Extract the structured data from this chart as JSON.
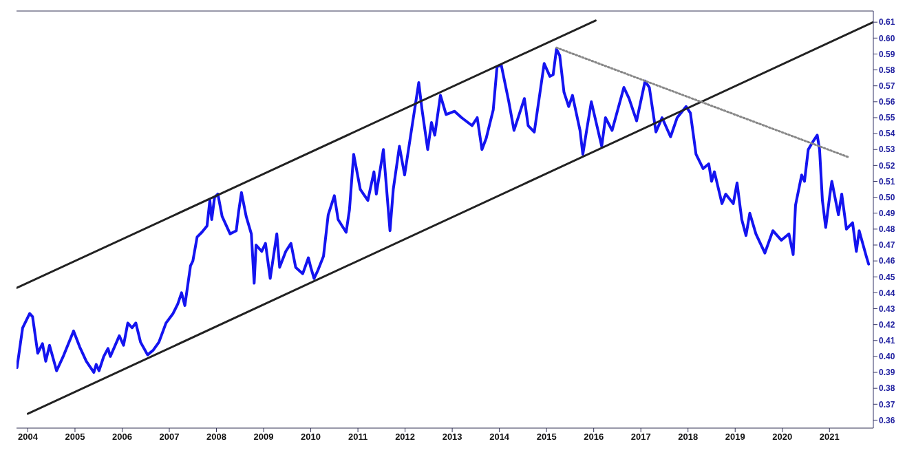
{
  "chart_data": {
    "type": "line",
    "xlim": [
      2003.76,
      2021.93
    ],
    "ylim": [
      0.355,
      0.617
    ],
    "xticks": [
      2004,
      2005,
      2006,
      2007,
      2008,
      2009,
      2010,
      2011,
      2012,
      2013,
      2014,
      2015,
      2016,
      2017,
      2018,
      2019,
      2020,
      2021
    ],
    "yticks": [
      0.36,
      0.37,
      0.38,
      0.39,
      {
        "value": 0.4,
        "label": "0.40"
      },
      0.41,
      0.42,
      0.43,
      0.44,
      0.45,
      0.46,
      0.47,
      0.48,
      0.49,
      {
        "value": 0.5,
        "label": "0.50"
      },
      0.51,
      0.52,
      0.53,
      0.54,
      0.55,
      0.56,
      0.57,
      0.58,
      0.59,
      {
        "value": 0.6,
        "label": "0.60"
      },
      0.61
    ],
    "grid": false,
    "legend": false,
    "series": [
      {
        "color": "#1414f0",
        "line_style": "solid",
        "x": [
          2003.77,
          2003.89,
          2004.04,
          2004.1,
          2004.21,
          2004.31,
          2004.38,
          2004.46,
          2004.61,
          2004.75,
          2004.97,
          2005.1,
          2005.24,
          2005.4,
          2005.45,
          2005.51,
          2005.61,
          2005.7,
          2005.75,
          2005.94,
          2006.03,
          2006.12,
          2006.21,
          2006.29,
          2006.39,
          2006.54,
          2006.66,
          2006.78,
          2006.93,
          2007.08,
          2007.18,
          2007.26,
          2007.33,
          2007.45,
          2007.5,
          2007.59,
          2007.69,
          2007.8,
          2007.86,
          2007.9,
          2007.96,
          2008.03,
          2008.12,
          2008.29,
          2008.42,
          2008.47,
          2008.53,
          2008.63,
          2008.74,
          2008.8,
          2008.84,
          2008.96,
          2009.04,
          2009.14,
          2009.28,
          2009.34,
          2009.47,
          2009.58,
          2009.68,
          2009.83,
          2009.95,
          2010.0,
          2010.07,
          2010.15,
          2010.27,
          2010.37,
          2010.5,
          2010.58,
          2010.75,
          2010.82,
          2010.91,
          2011.05,
          2011.21,
          2011.34,
          2011.39,
          2011.54,
          2011.68,
          2011.75,
          2011.88,
          2011.99,
          2012.15,
          2012.29,
          2012.36,
          2012.48,
          2012.56,
          2012.63,
          2012.75,
          2012.87,
          2013.05,
          2013.2,
          2013.42,
          2013.53,
          2013.63,
          2013.72,
          2013.87,
          2013.95,
          2014.04,
          2014.2,
          2014.31,
          2014.53,
          2014.61,
          2014.74,
          2014.95,
          2015.07,
          2015.14,
          2015.21,
          2015.28,
          2015.37,
          2015.47,
          2015.55,
          2015.71,
          2015.77,
          2015.85,
          2015.95,
          2016.17,
          2016.25,
          2016.39,
          2016.64,
          2016.75,
          2016.91,
          2017.09,
          2017.18,
          2017.32,
          2017.45,
          2017.63,
          2017.77,
          2017.96,
          2018.05,
          2018.17,
          2018.32,
          2018.44,
          2018.5,
          2018.56,
          2018.72,
          2018.8,
          2018.96,
          2019.04,
          2019.14,
          2019.23,
          2019.31,
          2019.44,
          2019.63,
          2019.8,
          2019.98,
          2020.14,
          2020.23,
          2020.28,
          2020.41,
          2020.47,
          2020.55,
          2020.65,
          2020.74,
          2020.79,
          2020.85,
          2020.92,
          2021.01,
          2021.05,
          2021.19,
          2021.26,
          2021.36,
          2021.49,
          2021.57,
          2021.63,
          2021.78,
          2021.83
        ],
        "values": [
          0.393,
          0.418,
          0.427,
          0.425,
          0.402,
          0.408,
          0.397,
          0.407,
          0.391,
          0.4,
          0.416,
          0.406,
          0.397,
          0.39,
          0.395,
          0.391,
          0.4,
          0.405,
          0.4,
          0.413,
          0.407,
          0.421,
          0.418,
          0.421,
          0.409,
          0.401,
          0.404,
          0.409,
          0.421,
          0.427,
          0.433,
          0.44,
          0.432,
          0.457,
          0.46,
          0.475,
          0.478,
          0.482,
          0.498,
          0.486,
          0.5,
          0.502,
          0.488,
          0.477,
          0.479,
          0.491,
          0.503,
          0.488,
          0.477,
          0.446,
          0.47,
          0.466,
          0.471,
          0.449,
          0.477,
          0.456,
          0.466,
          0.471,
          0.456,
          0.452,
          0.462,
          0.456,
          0.449,
          0.454,
          0.463,
          0.489,
          0.501,
          0.486,
          0.478,
          0.492,
          0.527,
          0.505,
          0.498,
          0.516,
          0.502,
          0.53,
          0.479,
          0.505,
          0.532,
          0.514,
          0.545,
          0.572,
          0.555,
          0.53,
          0.547,
          0.539,
          0.564,
          0.552,
          0.554,
          0.55,
          0.545,
          0.55,
          0.53,
          0.537,
          0.555,
          0.582,
          0.583,
          0.56,
          0.542,
          0.562,
          0.545,
          0.541,
          0.584,
          0.576,
          0.577,
          0.593,
          0.589,
          0.566,
          0.557,
          0.564,
          0.542,
          0.527,
          0.542,
          0.56,
          0.532,
          0.55,
          0.542,
          0.569,
          0.562,
          0.548,
          0.573,
          0.569,
          0.541,
          0.55,
          0.538,
          0.55,
          0.557,
          0.553,
          0.527,
          0.518,
          0.521,
          0.51,
          0.516,
          0.496,
          0.502,
          0.496,
          0.509,
          0.486,
          0.476,
          0.49,
          0.477,
          0.465,
          0.479,
          0.473,
          0.477,
          0.464,
          0.495,
          0.514,
          0.51,
          0.53,
          0.535,
          0.539,
          0.53,
          0.498,
          0.481,
          0.502,
          0.51,
          0.489,
          0.502,
          0.48,
          0.484,
          0.466,
          0.479,
          0.463,
          0.458
        ]
      },
      {
        "color": "#222222",
        "line_style": "solid",
        "x": [
          2003.76,
          2016.04
        ],
        "values": [
          0.443,
          0.611
        ]
      },
      {
        "color": "#222222",
        "line_style": "solid",
        "x": [
          2004.0,
          2021.93
        ],
        "values": [
          0.364,
          0.61
        ]
      },
      {
        "color": "#888888",
        "line_style": "dotted",
        "x": [
          2015.21,
          2021.42
        ],
        "values": [
          0.594,
          0.525
        ]
      }
    ]
  }
}
